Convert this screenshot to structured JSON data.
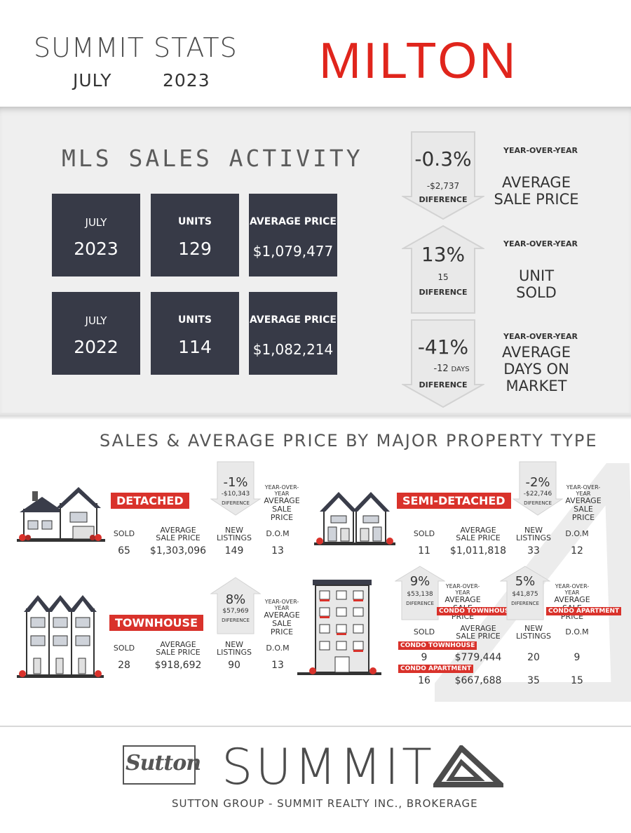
{
  "header": {
    "title": "SUMMIT STATS",
    "month": "JULY",
    "year": "2023",
    "city": "MILTON"
  },
  "mls": {
    "title": "MLS SALES ACTIVITY",
    "rows": [
      {
        "month": "JULY",
        "year": "2023",
        "units_label": "UNITS",
        "units": "129",
        "price_label": "AVERAGE PRICE",
        "price": "$1,079,477"
      },
      {
        "month": "JULY",
        "year": "2022",
        "units_label": "UNITS",
        "units": "114",
        "price_label": "AVERAGE PRICE",
        "price": "$1,082,214"
      }
    ]
  },
  "yoy": [
    {
      "direction": "down",
      "percent": "-0.3%",
      "amount": "-$2,737",
      "amount_unit": "",
      "diff": "DIFERENCE",
      "yoy": "YEAR-OVER-YEAR",
      "metric_line1": "AVERAGE",
      "metric_line2": "SALE PRICE",
      "metric_line3": ""
    },
    {
      "direction": "up",
      "percent": "13%",
      "amount": "15",
      "amount_unit": "",
      "diff": "DIFERENCE",
      "yoy": "YEAR-OVER-YEAR",
      "metric_line1": "UNIT",
      "metric_line2": "SOLD",
      "metric_line3": ""
    },
    {
      "direction": "down",
      "percent": "-41%",
      "amount": "-12",
      "amount_unit": "DAYS",
      "diff": "DIFERENCE",
      "yoy": "YEAR-OVER-YEAR",
      "metric_line1": "AVERAGE",
      "metric_line2": "DAYS ON",
      "metric_line3": "MARKET"
    }
  ],
  "property": {
    "title": "SALES & AVERAGE PRICE BY MAJOR PROPERTY TYPE",
    "headers": {
      "sold": "SOLD",
      "avg1": "AVERAGE",
      "avg2": "SALE PRICE",
      "new1": "NEW",
      "new2": "LISTINGS",
      "dom": "D.O.M"
    },
    "yoy1": "YEAR-OVER-YEAR",
    "yoy2": "AVERAGE",
    "yoy3": "SALE PRICE",
    "diff": "DIFERENCE",
    "detached": {
      "label": "DETACHED",
      "percent": "-1%",
      "amount": "-$10,343",
      "sold": "65",
      "price": "$1,303,096",
      "listings": "149",
      "dom": "13"
    },
    "semi": {
      "label": "SEMI-DETACHED",
      "percent": "-2%",
      "amount": "-$22,746",
      "sold": "11",
      "price": "$1,011,818",
      "listings": "33",
      "dom": "12"
    },
    "townhouse": {
      "label": "TOWNHOUSE",
      "percent": "8%",
      "amount": "$57,969",
      "sold": "28",
      "price": "$918,692",
      "listings": "90",
      "dom": "13"
    },
    "condo_th": {
      "label": "CONDO TOWNHOUSE",
      "percent": "9%",
      "amount": "$53,138",
      "sold": "9",
      "price": "$779,444",
      "listings": "20",
      "dom": "9"
    },
    "condo_apt": {
      "label": "CONDO APARTMENT",
      "percent": "5%",
      "amount": "$41,875",
      "sold": "16",
      "price": "$667,688",
      "listings": "35",
      "dom": "15"
    }
  },
  "footer": {
    "sutton": "Sutton",
    "summit": "SUMMIT",
    "brokerage": "SUTTON GROUP - SUMMIT REALTY INC., BROKERAGE"
  },
  "colors": {
    "accent_red": "#e0251c",
    "box_dark": "#373a47",
    "band_gray": "#efefef"
  }
}
